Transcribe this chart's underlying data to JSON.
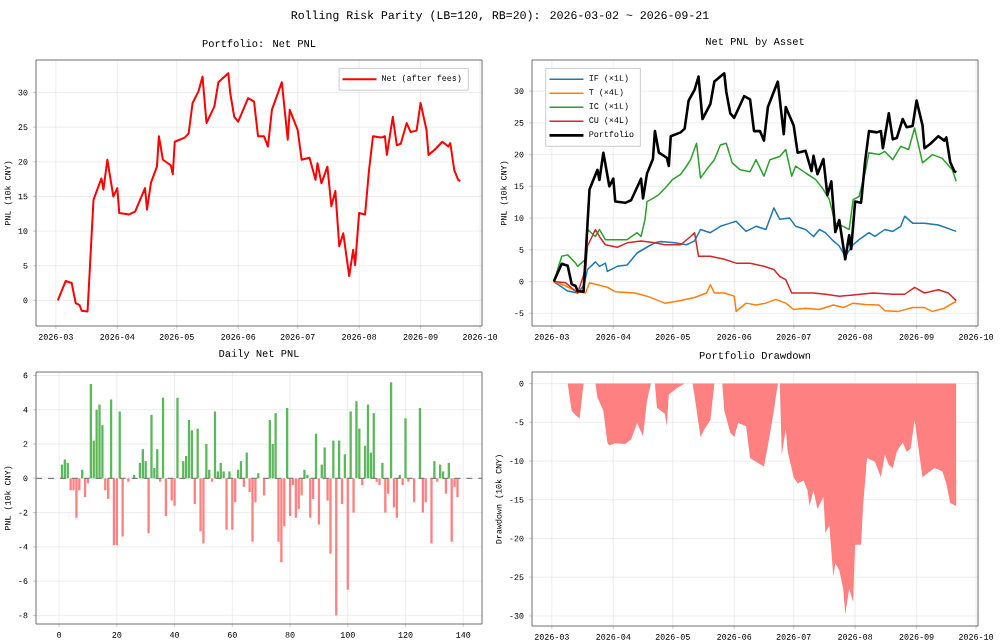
{
  "chart_data": [
    {
      "type": "line",
      "title": "Portfolio: Net PNL",
      "ylabel": "PNL (10k CNY)",
      "annotations": [
        "Rolling Risk Parity (LB=120, RB=20): 2026-03-02 ~ 2026-09-21"
      ],
      "x": [
        "2026-03-02",
        "2026-03-06",
        "2026-03-09",
        "2026-03-11",
        "2026-03-13",
        "2026-03-14",
        "2026-03-17",
        "2026-03-20",
        "2026-03-24",
        "2026-03-25",
        "2026-03-27",
        "2026-03-30",
        "2026-04-01",
        "2026-04-02",
        "2026-04-07",
        "2026-04-10",
        "2026-04-15",
        "2026-04-16",
        "2026-04-18",
        "2026-04-21",
        "2026-04-22",
        "2026-04-24",
        "2026-04-28",
        "2026-04-29",
        "2026-04-30",
        "2026-05-05",
        "2026-05-07",
        "2026-05-09",
        "2026-05-12",
        "2026-05-14",
        "2026-05-16",
        "2026-05-20",
        "2026-05-22",
        "2026-05-27",
        "2026-05-28",
        "2026-05-30",
        "2026-06-01",
        "2026-06-06",
        "2026-06-09",
        "2026-06-11",
        "2026-06-14",
        "2026-06-16",
        "2026-06-18",
        "2026-06-23",
        "2026-06-26",
        "2026-06-27",
        "2026-07-01",
        "2026-07-03",
        "2026-07-07",
        "2026-07-10",
        "2026-07-11",
        "2026-07-13",
        "2026-07-16",
        "2026-07-18",
        "2026-07-20",
        "2026-07-22",
        "2026-07-24",
        "2026-07-27",
        "2026-07-29",
        "2026-07-30",
        "2026-08-01",
        "2026-08-04",
        "2026-08-06",
        "2026-08-08",
        "2026-08-12",
        "2026-08-14",
        "2026-08-15",
        "2026-08-18",
        "2026-08-20",
        "2026-08-22",
        "2026-08-25",
        "2026-08-27",
        "2026-08-30",
        "2026-09-01",
        "2026-09-04",
        "2026-09-05",
        "2026-09-08",
        "2026-09-12",
        "2026-09-15",
        "2026-09-16",
        "2026-09-18",
        "2026-09-20",
        "2026-09-21"
      ],
      "series": [
        {
          "name": "Net (after fees)",
          "color": "#ff0000",
          "values": [
            0,
            2.8,
            2.5,
            -0.4,
            -0.7,
            -1.5,
            -1.6,
            14.5,
            17.6,
            16,
            20.3,
            15,
            16.2,
            12.6,
            12.4,
            12.8,
            16.2,
            13.1,
            17,
            19.3,
            23.7,
            20.3,
            19.5,
            18.2,
            22.9,
            23.5,
            24.1,
            28.5,
            30.2,
            32.3,
            25.6,
            28,
            31.5,
            32.8,
            29.9,
            26.5,
            25.8,
            29.2,
            28.7,
            23.7,
            23.7,
            22.2,
            27.5,
            31.5,
            23.2,
            27.5,
            24.6,
            20.3,
            20.6,
            17.4,
            19.8,
            16.9,
            19.3,
            13.6,
            15.8,
            7.8,
            9.7,
            3.5,
            7.3,
            5.1,
            12.6,
            12.4,
            18.8,
            23.7,
            23.5,
            23.7,
            21,
            26.5,
            22.4,
            22.6,
            25.6,
            24.3,
            24.5,
            28.5,
            24.6,
            21,
            21.7,
            22.9,
            22.2,
            22.7,
            18.8,
            17.4,
            17.2
          ]
        }
      ],
      "xlim": [
        "2026-02-19",
        "2026-10-02"
      ],
      "ylim": [
        -3.7,
        34.7
      ],
      "xticks": [
        {
          "value": "2026-03-01",
          "label": "2026-03"
        },
        {
          "value": "2026-04-01",
          "label": "2026-04"
        },
        {
          "value": "2026-05-01",
          "label": "2026-05"
        },
        {
          "value": "2026-06-01",
          "label": "2026-06"
        },
        {
          "value": "2026-07-01",
          "label": "2026-07"
        },
        {
          "value": "2026-08-01",
          "label": "2026-08"
        },
        {
          "value": "2026-09-01",
          "label": "2026-09"
        },
        {
          "value": "2026-10-01",
          "label": "2026-10"
        }
      ],
      "yticks": [
        0,
        5,
        10,
        15,
        20,
        25,
        30
      ],
      "grid": true,
      "legend": "top right"
    },
    {
      "type": "line",
      "title": "Net PNL by Asset",
      "ylabel": "PNL (10k CNY)",
      "series": [
        {
          "name": "IF (×1L)",
          "color": "#1f77b4",
          "x": [
            "2026-03-02",
            "2026-03-09",
            "2026-03-14",
            "2026-03-17",
            "2026-03-19",
            "2026-03-23",
            "2026-03-25",
            "2026-03-28",
            "2026-03-29",
            "2026-04-03",
            "2026-04-08",
            "2026-04-13",
            "2026-04-19",
            "2026-04-22",
            "2026-04-25",
            "2026-05-02",
            "2026-05-08",
            "2026-05-12",
            "2026-05-15",
            "2026-05-20",
            "2026-05-25",
            "2026-05-30",
            "2026-06-02",
            "2026-06-07",
            "2026-06-12",
            "2026-06-17",
            "2026-06-21",
            "2026-06-24",
            "2026-06-29",
            "2026-07-02",
            "2026-07-07",
            "2026-07-11",
            "2026-07-14",
            "2026-07-17",
            "2026-07-21",
            "2026-07-24",
            "2026-07-27",
            "2026-07-31",
            "2026-08-03",
            "2026-08-08",
            "2026-08-11",
            "2026-08-16",
            "2026-08-20",
            "2026-08-24",
            "2026-08-26",
            "2026-08-30",
            "2026-09-05",
            "2026-09-12",
            "2026-09-21"
          ],
          "values": [
            0,
            -1.5,
            -1.8,
            -0.7,
            1.9,
            3.1,
            2.4,
            2.9,
            1.6,
            2.4,
            2.6,
            4.5,
            5.6,
            6.1,
            6.3,
            6.1,
            5.8,
            6.4,
            8.2,
            7.7,
            8.7,
            9.2,
            9.5,
            7.9,
            8.7,
            8.2,
            11.6,
            9.8,
            10,
            8.7,
            8.2,
            7.1,
            8.2,
            7.7,
            6.4,
            5.6,
            4.0,
            5.8,
            6.6,
            7.7,
            7.1,
            8.2,
            7.9,
            8.7,
            10.3,
            9.2,
            9.2,
            8.9,
            7.9
          ]
        },
        {
          "name": "T (×4L)",
          "color": "#ff7f0e",
          "x": [
            "2026-03-02",
            "2026-03-08",
            "2026-03-14",
            "2026-03-18",
            "2026-03-20",
            "2026-03-24",
            "2026-03-29",
            "2026-04-02",
            "2026-04-12",
            "2026-04-18",
            "2026-04-27",
            "2026-05-05",
            "2026-05-12",
            "2026-05-18",
            "2026-05-20",
            "2026-05-22",
            "2026-05-27",
            "2026-06-01",
            "2026-06-02",
            "2026-06-07",
            "2026-06-12",
            "2026-06-17",
            "2026-06-22",
            "2026-06-27",
            "2026-07-01",
            "2026-07-07",
            "2026-07-14",
            "2026-07-21",
            "2026-07-26",
            "2026-07-31",
            "2026-08-06",
            "2026-08-13",
            "2026-08-16",
            "2026-08-23",
            "2026-08-30",
            "2026-09-05",
            "2026-09-09",
            "2026-09-15",
            "2026-09-21"
          ],
          "values": [
            0,
            -0.7,
            -1.6,
            -1.8,
            -0.2,
            -0.5,
            -0.9,
            -1.6,
            -1.8,
            -2.3,
            -3.4,
            -3.0,
            -2.5,
            -1.8,
            -0.5,
            -1.8,
            -1.8,
            -2.3,
            -4.7,
            -3.4,
            -3.7,
            -3.4,
            -2.8,
            -3.4,
            -4.4,
            -4.2,
            -4.4,
            -3.7,
            -4.1,
            -3.4,
            -3.6,
            -3.7,
            -4.6,
            -4.7,
            -4.1,
            -4.1,
            -4.7,
            -4.2,
            -3.1
          ]
        },
        {
          "name": "IC (×1L)",
          "color": "#2ca02c",
          "x": [
            "2026-03-02",
            "2026-03-06",
            "2026-03-09",
            "2026-03-13",
            "2026-03-14",
            "2026-03-18",
            "2026-03-19",
            "2026-03-23",
            "2026-03-25",
            "2026-03-28",
            "2026-03-31",
            "2026-04-08",
            "2026-04-13",
            "2026-04-15",
            "2026-04-17",
            "2026-04-18",
            "2026-04-21",
            "2026-04-24",
            "2026-04-28",
            "2026-05-01",
            "2026-05-05",
            "2026-05-08",
            "2026-05-10",
            "2026-05-13",
            "2026-05-15",
            "2026-05-18",
            "2026-05-22",
            "2026-05-25",
            "2026-05-28",
            "2026-05-31",
            "2026-06-04",
            "2026-06-09",
            "2026-06-12",
            "2026-06-16",
            "2026-06-19",
            "2026-06-24",
            "2026-06-27",
            "2026-06-30",
            "2026-07-02",
            "2026-07-07",
            "2026-07-12",
            "2026-07-16",
            "2026-07-19",
            "2026-07-22",
            "2026-07-26",
            "2026-07-29",
            "2026-07-31",
            "2026-08-03",
            "2026-08-06",
            "2026-08-08",
            "2026-08-13",
            "2026-08-16",
            "2026-08-20",
            "2026-08-24",
            "2026-08-28",
            "2026-08-31",
            "2026-09-04",
            "2026-09-09",
            "2026-09-14",
            "2026-09-19",
            "2026-09-21"
          ],
          "values": [
            0,
            4.0,
            4.2,
            2.9,
            2.4,
            3.5,
            8.2,
            7.1,
            8.2,
            6.6,
            6.6,
            6.6,
            7.7,
            7.1,
            9.8,
            12.6,
            13.1,
            13.7,
            15.0,
            16.1,
            16.9,
            18.2,
            19.2,
            21.8,
            16.3,
            17.6,
            19.2,
            21.5,
            21.8,
            18.7,
            17.6,
            17.3,
            19.2,
            16.6,
            19.2,
            19.7,
            20.8,
            16.6,
            18.2,
            17.1,
            16.1,
            14.5,
            12.9,
            9.2,
            8.7,
            8.2,
            12.9,
            13.4,
            17.1,
            20.3,
            20.0,
            20.5,
            19.2,
            21.3,
            20.8,
            24.2,
            18.7,
            20.0,
            19.4,
            17.6,
            15.8
          ]
        },
        {
          "name": "CU (×4L)",
          "color": "#d62728",
          "x": [
            "2026-03-02",
            "2026-03-08",
            "2026-03-14",
            "2026-03-18",
            "2026-03-19",
            "2026-03-23",
            "2026-03-25",
            "2026-03-28",
            "2026-04-03",
            "2026-04-08",
            "2026-04-15",
            "2026-04-22",
            "2026-04-27",
            "2026-05-05",
            "2026-05-10",
            "2026-05-12",
            "2026-05-14",
            "2026-05-20",
            "2026-05-27",
            "2026-06-02",
            "2026-06-09",
            "2026-06-16",
            "2026-06-21",
            "2026-06-24",
            "2026-06-27",
            "2026-06-30",
            "2026-07-04",
            "2026-07-11",
            "2026-07-17",
            "2026-07-24",
            "2026-07-31",
            "2026-08-10",
            "2026-08-20",
            "2026-08-26",
            "2026-08-31",
            "2026-09-05",
            "2026-09-12",
            "2026-09-17",
            "2026-09-21"
          ],
          "values": [
            0,
            -0.2,
            -1.8,
            1.9,
            5.6,
            8.2,
            7.1,
            5.8,
            5.4,
            6.1,
            6.4,
            6.1,
            5.8,
            5.8,
            7.1,
            7.7,
            4.0,
            4.0,
            3.5,
            2.9,
            2.9,
            2.4,
            1.9,
            0.8,
            0.3,
            -1.8,
            -1.8,
            -1.8,
            -2.0,
            -2.3,
            -2.1,
            -1.8,
            -2.0,
            -2.0,
            -0.9,
            -1.8,
            -1.3,
            -1.8,
            -3.0
          ]
        },
        {
          "name": "Portfolio",
          "color": "#000000",
          "x": [
            "2026-03-02",
            "2026-03-06",
            "2026-03-09",
            "2026-03-11",
            "2026-03-13",
            "2026-03-14",
            "2026-03-17",
            "2026-03-20",
            "2026-03-24",
            "2026-03-25",
            "2026-03-27",
            "2026-03-30",
            "2026-04-01",
            "2026-04-02",
            "2026-04-07",
            "2026-04-10",
            "2026-04-15",
            "2026-04-16",
            "2026-04-18",
            "2026-04-21",
            "2026-04-22",
            "2026-04-24",
            "2026-04-28",
            "2026-04-29",
            "2026-04-30",
            "2026-05-05",
            "2026-05-07",
            "2026-05-09",
            "2026-05-12",
            "2026-05-14",
            "2026-05-16",
            "2026-05-20",
            "2026-05-22",
            "2026-05-27",
            "2026-05-28",
            "2026-05-30",
            "2026-06-01",
            "2026-06-06",
            "2026-06-09",
            "2026-06-11",
            "2026-06-14",
            "2026-06-16",
            "2026-06-18",
            "2026-06-23",
            "2026-06-26",
            "2026-06-27",
            "2026-07-01",
            "2026-07-03",
            "2026-07-07",
            "2026-07-10",
            "2026-07-11",
            "2026-07-13",
            "2026-07-16",
            "2026-07-18",
            "2026-07-20",
            "2026-07-22",
            "2026-07-24",
            "2026-07-27",
            "2026-07-29",
            "2026-07-30",
            "2026-08-01",
            "2026-08-04",
            "2026-08-06",
            "2026-08-08",
            "2026-08-12",
            "2026-08-14",
            "2026-08-15",
            "2026-08-18",
            "2026-08-20",
            "2026-08-22",
            "2026-08-25",
            "2026-08-27",
            "2026-08-30",
            "2026-09-01",
            "2026-09-04",
            "2026-09-05",
            "2026-09-08",
            "2026-09-12",
            "2026-09-15",
            "2026-09-16",
            "2026-09-18",
            "2026-09-20",
            "2026-09-21"
          ],
          "values": [
            0,
            2.8,
            2.5,
            -0.4,
            -0.7,
            -1.5,
            -1.6,
            14.5,
            17.6,
            16,
            20.3,
            15,
            16.2,
            12.6,
            12.4,
            12.8,
            16.2,
            13.1,
            17,
            19.3,
            23.7,
            20.3,
            19.5,
            18.2,
            22.9,
            23.5,
            24.1,
            28.5,
            30.2,
            32.3,
            25.6,
            28,
            31.5,
            32.8,
            29.9,
            26.5,
            25.8,
            29.2,
            28.7,
            23.7,
            23.7,
            22.2,
            27.5,
            31.5,
            23.2,
            27.5,
            24.6,
            20.3,
            20.6,
            17.4,
            19.8,
            16.9,
            19.3,
            13.6,
            15.8,
            7.8,
            9.7,
            3.5,
            7.3,
            5.1,
            12.6,
            12.4,
            18.8,
            23.7,
            23.5,
            23.7,
            21,
            26.5,
            22.4,
            22.6,
            25.6,
            24.3,
            24.5,
            28.5,
            24.6,
            21,
            21.7,
            22.9,
            22.2,
            22.7,
            18.8,
            17.4,
            17.2
          ]
        }
      ],
      "xlim": [
        "2026-02-19",
        "2026-10-02"
      ],
      "ylim": [
        -7.0,
        34.9
      ],
      "xticks": [
        {
          "value": "2026-03-01",
          "label": "2026-03"
        },
        {
          "value": "2026-04-01",
          "label": "2026-04"
        },
        {
          "value": "2026-05-01",
          "label": "2026-05"
        },
        {
          "value": "2026-06-01",
          "label": "2026-06"
        },
        {
          "value": "2026-07-01",
          "label": "2026-07"
        },
        {
          "value": "2026-08-01",
          "label": "2026-08"
        },
        {
          "value": "2026-09-01",
          "label": "2026-09"
        },
        {
          "value": "2026-10-01",
          "label": "2026-10"
        }
      ],
      "yticks": [
        -5,
        0,
        5,
        10,
        15,
        20,
        25,
        30
      ],
      "grid": true,
      "legend": "top left"
    },
    {
      "type": "bar",
      "title": "Daily Net PNL",
      "ylabel": "PNL (10k CNY)",
      "series": [
        {
          "color": "#5cb85c",
          "x": [
            1,
            2,
            3,
            8,
            11,
            12,
            13,
            14,
            15,
            18,
            21,
            26,
            28,
            29,
            30,
            32,
            33,
            34,
            36,
            41,
            43,
            44,
            45,
            46,
            48,
            51,
            52,
            54,
            55,
            56,
            57,
            59,
            62,
            63,
            65,
            69,
            73,
            74,
            75,
            79,
            85,
            86,
            89,
            91,
            92,
            95,
            97,
            99,
            101,
            103,
            104,
            106,
            107,
            108,
            109,
            112,
            115,
            118,
            120,
            122,
            124,
            125,
            130,
            132,
            133,
            135
          ],
          "values": [
            0.8,
            1.1,
            0.9,
            0.5,
            5.5,
            2.2,
            4.0,
            4.3,
            3.1,
            4.6,
            3.9,
            0.2,
            0.9,
            1.7,
            1.0,
            3.7,
            0.6,
            1.7,
            4.7,
            4.7,
            1.0,
            1.3,
            3.4,
            2.8,
            2.9,
            2.0,
            0.5,
            3.9,
            0.4,
            0.9,
            0.4,
            0.4,
            0.5,
            1.0,
            1.5,
            0.3,
            3.4,
            2.0,
            3.8,
            4.1,
            0.5,
            0.2,
            2.6,
            0.8,
            1.8,
            2.2,
            2.2,
            1.4,
            3.9,
            4.5,
            2.9,
            1.9,
            4.3,
            1.5,
            3.8,
            0.9,
            5.6,
            0.2,
            3.5,
            null,
            null,
            4.1,
            1.0,
            0.8,
            0.4,
            0.9
          ]
        },
        {
          "color": "#ff8080",
          "x": [
            4,
            5,
            6,
            7,
            9,
            10,
            16,
            17,
            19,
            20,
            22,
            24,
            31,
            35,
            37,
            39,
            40,
            47,
            49,
            50,
            53,
            58,
            60,
            61,
            64,
            66,
            67,
            68,
            71,
            76,
            77,
            78,
            80,
            81,
            82,
            83,
            84,
            87,
            88,
            90,
            93,
            94,
            96,
            98,
            100,
            102,
            105,
            110,
            111,
            113,
            114,
            116,
            117,
            119,
            121,
            123,
            126,
            127,
            129,
            131,
            134,
            136,
            137,
            138
          ],
          "values": [
            -0.7,
            -0.7,
            -2.3,
            -0.7,
            -1.1,
            -0.3,
            -0.7,
            -1.2,
            -3.9,
            -3.9,
            -3.4,
            -0.2,
            -3.2,
            -0.2,
            -2.2,
            -1.3,
            -1.6,
            -1.5,
            -3.1,
            -3.8,
            -0.2,
            -3.0,
            -3.0,
            -1.4,
            -0.5,
            -0.8,
            -3.7,
            -1.4,
            -1.0,
            -3.7,
            -4.9,
            -2.8,
            -2.2,
            -0.4,
            -2.3,
            -1.8,
            -1.0,
            -2.3,
            -1.2,
            -2.7,
            -1.3,
            -4.4,
            -8.0,
            -1.5,
            -6.5,
            -2.0,
            -0.4,
            -0.2,
            -0.4,
            -2.0,
            -0.9,
            -1.7,
            -2.3,
            -0.4,
            -0.2,
            -1.4,
            -2.0,
            -1.4,
            -3.8,
            -0.2,
            -0.9,
            -3.7,
            -0.5,
            -1.1
          ]
        }
      ],
      "xlim": [
        -8,
        146.5
      ],
      "ylim": [
        -8.5,
        6.2
      ],
      "xticks": [
        0,
        20,
        40,
        60,
        80,
        100,
        120,
        140
      ],
      "yticks": [
        -8,
        -6,
        -4,
        -2,
        0,
        2,
        4,
        6
      ],
      "grid": true,
      "ref_lines": [
        {
          "axis": "y",
          "value": 0,
          "color": "#808080",
          "line_style": "dashed"
        }
      ]
    },
    {
      "type": "area",
      "title": "Portfolio Drawdown",
      "ylabel": "Drawdown (10k CNY)",
      "color": "#ff8080",
      "x": [
        "2026-03-02",
        "2026-03-09",
        "2026-03-10",
        "2026-03-11",
        "2026-03-13",
        "2026-03-15",
        "2026-03-17",
        "2026-03-23",
        "2026-03-24",
        "2026-03-27",
        "2026-03-29",
        "2026-03-30",
        "2026-04-02",
        "2026-04-07",
        "2026-04-10",
        "2026-04-13",
        "2026-04-16",
        "2026-04-18",
        "2026-04-20",
        "2026-04-22",
        "2026-04-23",
        "2026-04-27",
        "2026-04-28",
        "2026-04-29",
        "2026-05-03",
        "2026-05-07",
        "2026-05-11",
        "2026-05-12",
        "2026-05-15",
        "2026-05-17",
        "2026-05-20",
        "2026-05-22",
        "2026-05-26",
        "2026-05-27",
        "2026-05-30",
        "2026-06-01",
        "2026-06-03",
        "2026-06-07",
        "2026-06-09",
        "2026-06-12",
        "2026-06-16",
        "2026-06-18",
        "2026-06-21",
        "2026-06-23",
        "2026-06-24",
        "2026-06-25",
        "2026-06-27",
        "2026-06-28",
        "2026-07-01",
        "2026-07-03",
        "2026-07-06",
        "2026-07-08",
        "2026-07-09",
        "2026-07-11",
        "2026-07-13",
        "2026-07-16",
        "2026-07-17",
        "2026-07-19",
        "2026-07-21",
        "2026-07-22",
        "2026-07-24",
        "2026-07-26",
        "2026-07-27",
        "2026-07-29",
        "2026-07-31",
        "2026-08-01",
        "2026-08-04",
        "2026-08-05",
        "2026-08-07",
        "2026-08-11",
        "2026-08-14",
        "2026-08-16",
        "2026-08-18",
        "2026-08-20",
        "2026-08-22",
        "2026-08-25",
        "2026-08-27",
        "2026-08-29",
        "2026-08-31",
        "2026-09-04",
        "2026-09-07",
        "2026-09-10",
        "2026-09-14",
        "2026-09-16",
        "2026-09-18",
        "2026-09-21"
      ],
      "values": [
        0,
        0,
        -1.8,
        -3.5,
        -4.1,
        -4.5,
        0,
        0,
        -1.8,
        -3.5,
        -7.6,
        -8.0,
        -7.7,
        -7.8,
        -7.2,
        -5.1,
        -6.8,
        -2.2,
        0,
        0,
        -3.1,
        -3.9,
        -5.5,
        -1.4,
        -0.6,
        0,
        0,
        -1.6,
        -6.9,
        -5.9,
        -4.7,
        0,
        0,
        -3.5,
        -6.3,
        -6.9,
        -5.1,
        -5.5,
        -9.6,
        -10.1,
        -10.7,
        -8.0,
        -3.5,
        0,
        0,
        -9.2,
        -5.9,
        -8.8,
        -12.1,
        -12.9,
        -12.5,
        -13.8,
        -15.8,
        -13.8,
        -16.2,
        -14.6,
        -19.3,
        -18.3,
        -24.9,
        -23.2,
        -24.1,
        -26.5,
        -29.8,
        -26.5,
        -28.2,
        -20.8,
        -20.8,
        -15.8,
        -9.6,
        -10.1,
        -12.1,
        -9.2,
        -10.5,
        -10.9,
        -8.8,
        -7.6,
        -8.8,
        -8.4,
        -4.7,
        -12.1,
        -11.5,
        -10.9,
        -11.3,
        -12.9,
        -15.4,
        -15.8
      ],
      "xlim": [
        "2026-02-19",
        "2026-10-02"
      ],
      "ylim": [
        -31.3,
        1.5
      ],
      "xticks": [
        {
          "value": "2026-03-01",
          "label": "2026-03"
        },
        {
          "value": "2026-04-01",
          "label": "2026-04"
        },
        {
          "value": "2026-05-01",
          "label": "2026-05"
        },
        {
          "value": "2026-06-01",
          "label": "2026-06"
        },
        {
          "value": "2026-07-01",
          "label": "2026-07"
        },
        {
          "value": "2026-08-01",
          "label": "2026-08"
        },
        {
          "value": "2026-09-01",
          "label": "2026-09"
        },
        {
          "value": "2026-10-01",
          "label": "2026-10"
        }
      ],
      "yticks": [
        -30,
        -25,
        -20,
        -15,
        -10,
        -5,
        0
      ],
      "grid": true
    }
  ]
}
